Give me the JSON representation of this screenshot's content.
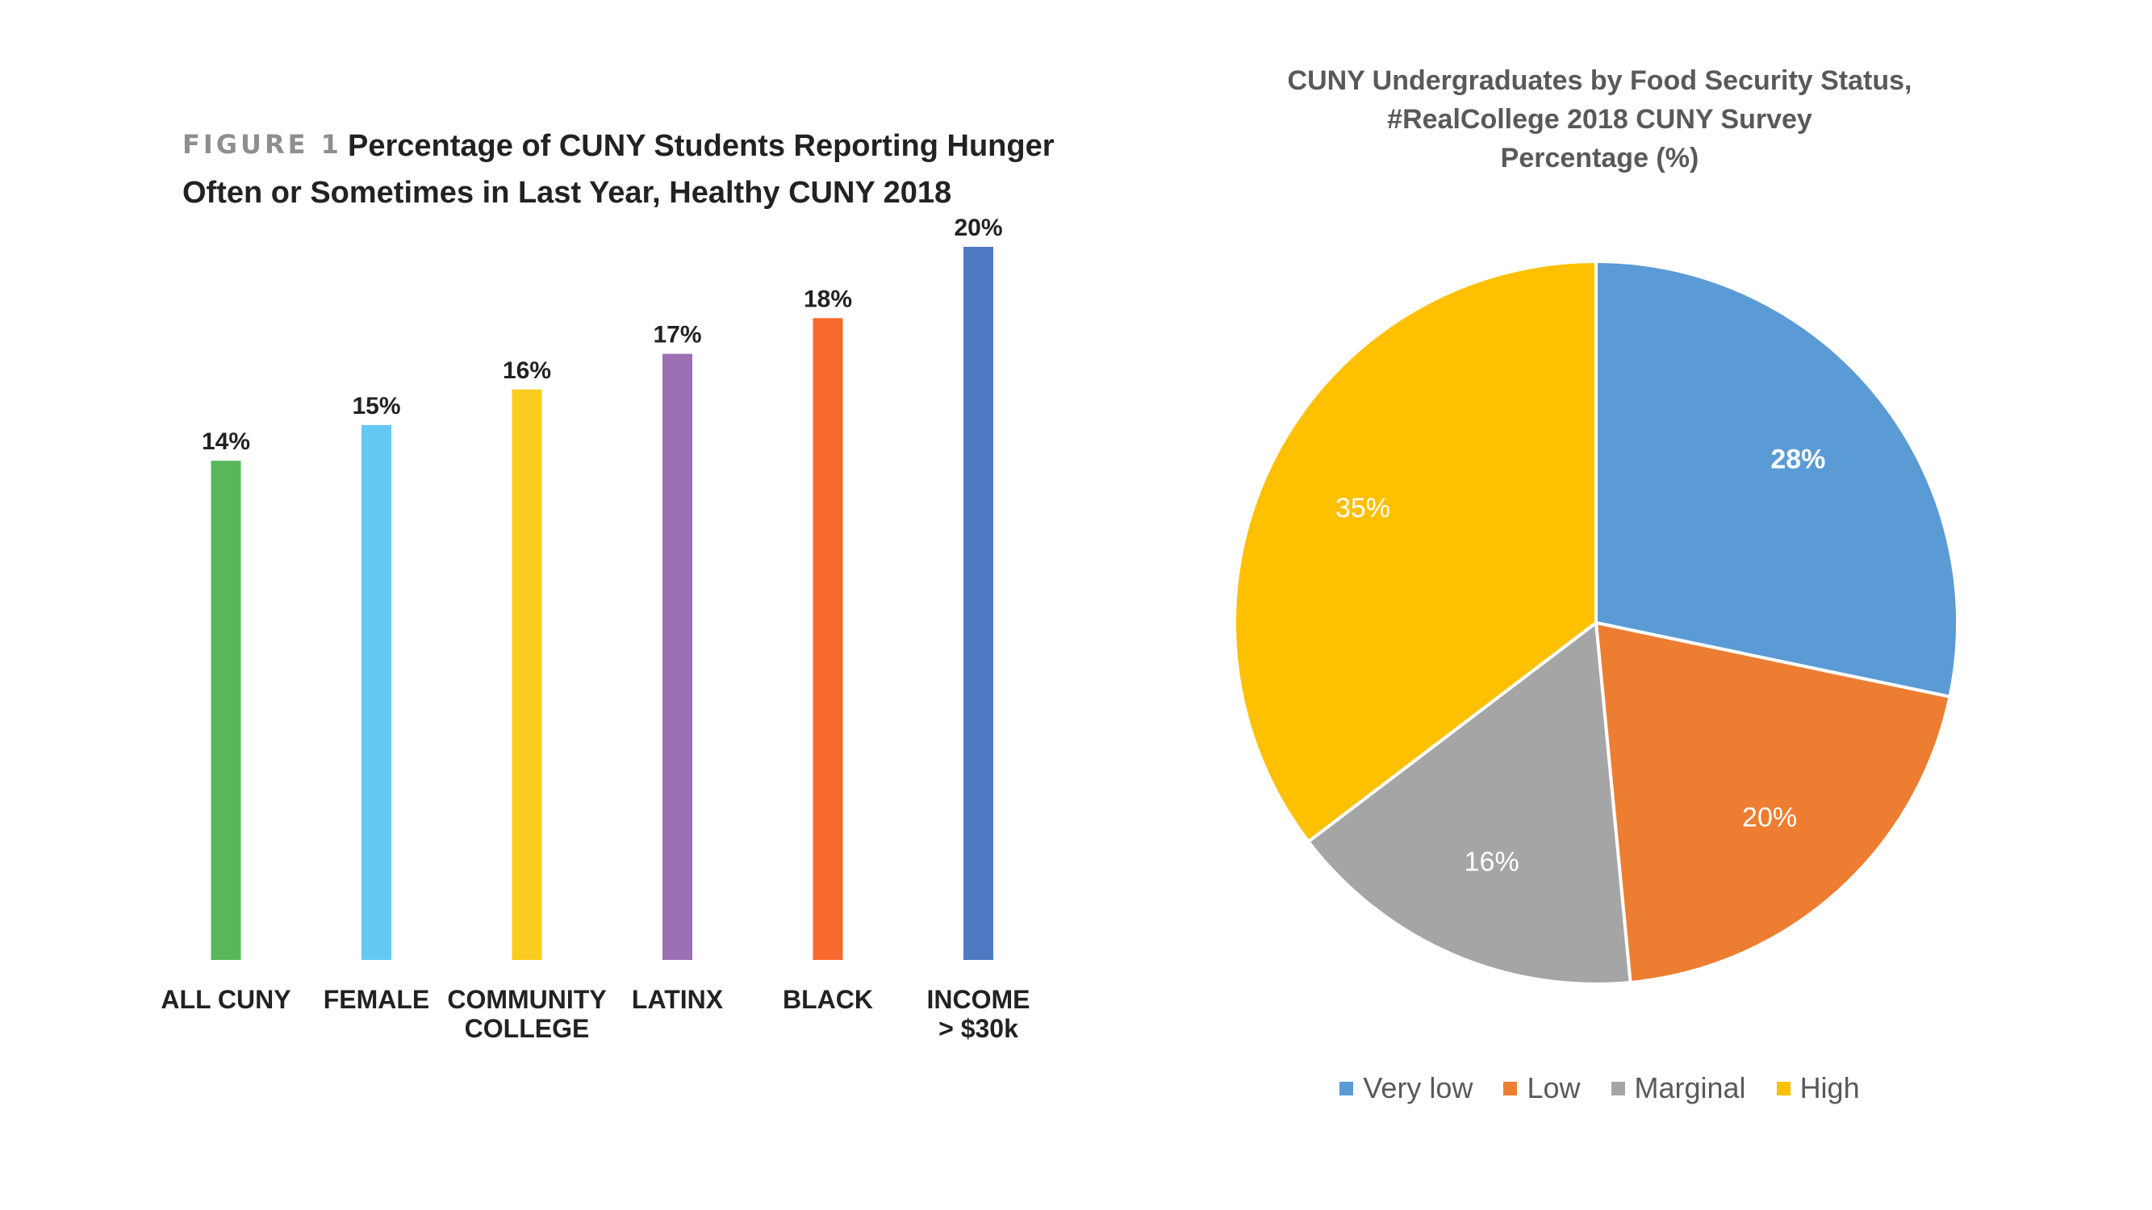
{
  "chart_data": [
    {
      "type": "bar",
      "figure_label": "FIGURE 1",
      "title": "Percentage of CUNY Students Reporting Hunger Often or Sometimes in Last Year, Healthy CUNY 2018",
      "categories": [
        [
          "ALL CUNY"
        ],
        [
          "FEMALE"
        ],
        [
          "COMMUNITY",
          "COLLEGE"
        ],
        [
          "LATINX"
        ],
        [
          "BLACK"
        ],
        [
          "INCOME",
          "> $30k"
        ]
      ],
      "values": [
        14,
        15,
        16,
        17,
        18,
        20
      ],
      "value_labels": [
        "14%",
        "15%",
        "16%",
        "17%",
        "18%",
        "20%"
      ],
      "colors": [
        "#56b858",
        "#63c9f2",
        "#f9cc1f",
        "#9b6fb4",
        "#f7692c",
        "#4f7ac3"
      ],
      "ylim": [
        0,
        20
      ],
      "grid": false,
      "xlabel": "",
      "ylabel": ""
    },
    {
      "type": "pie",
      "title_lines": [
        "CUNY Undergraduates by Food Security Status,",
        "#RealCollege 2018 CUNY Survey",
        "Percentage (%)"
      ],
      "labels": [
        "Very low",
        "Low",
        "Marginal",
        "High"
      ],
      "values": [
        28,
        20,
        16,
        35
      ],
      "value_labels": [
        "28%",
        "20%",
        "16%",
        "35%"
      ],
      "colors": [
        "#5b9bd5",
        "#ed7d31",
        "#a5a5a5",
        "#ffc000"
      ],
      "start_angle_deg": 0,
      "direction": "clockwise",
      "legend_position": "bottom"
    }
  ]
}
